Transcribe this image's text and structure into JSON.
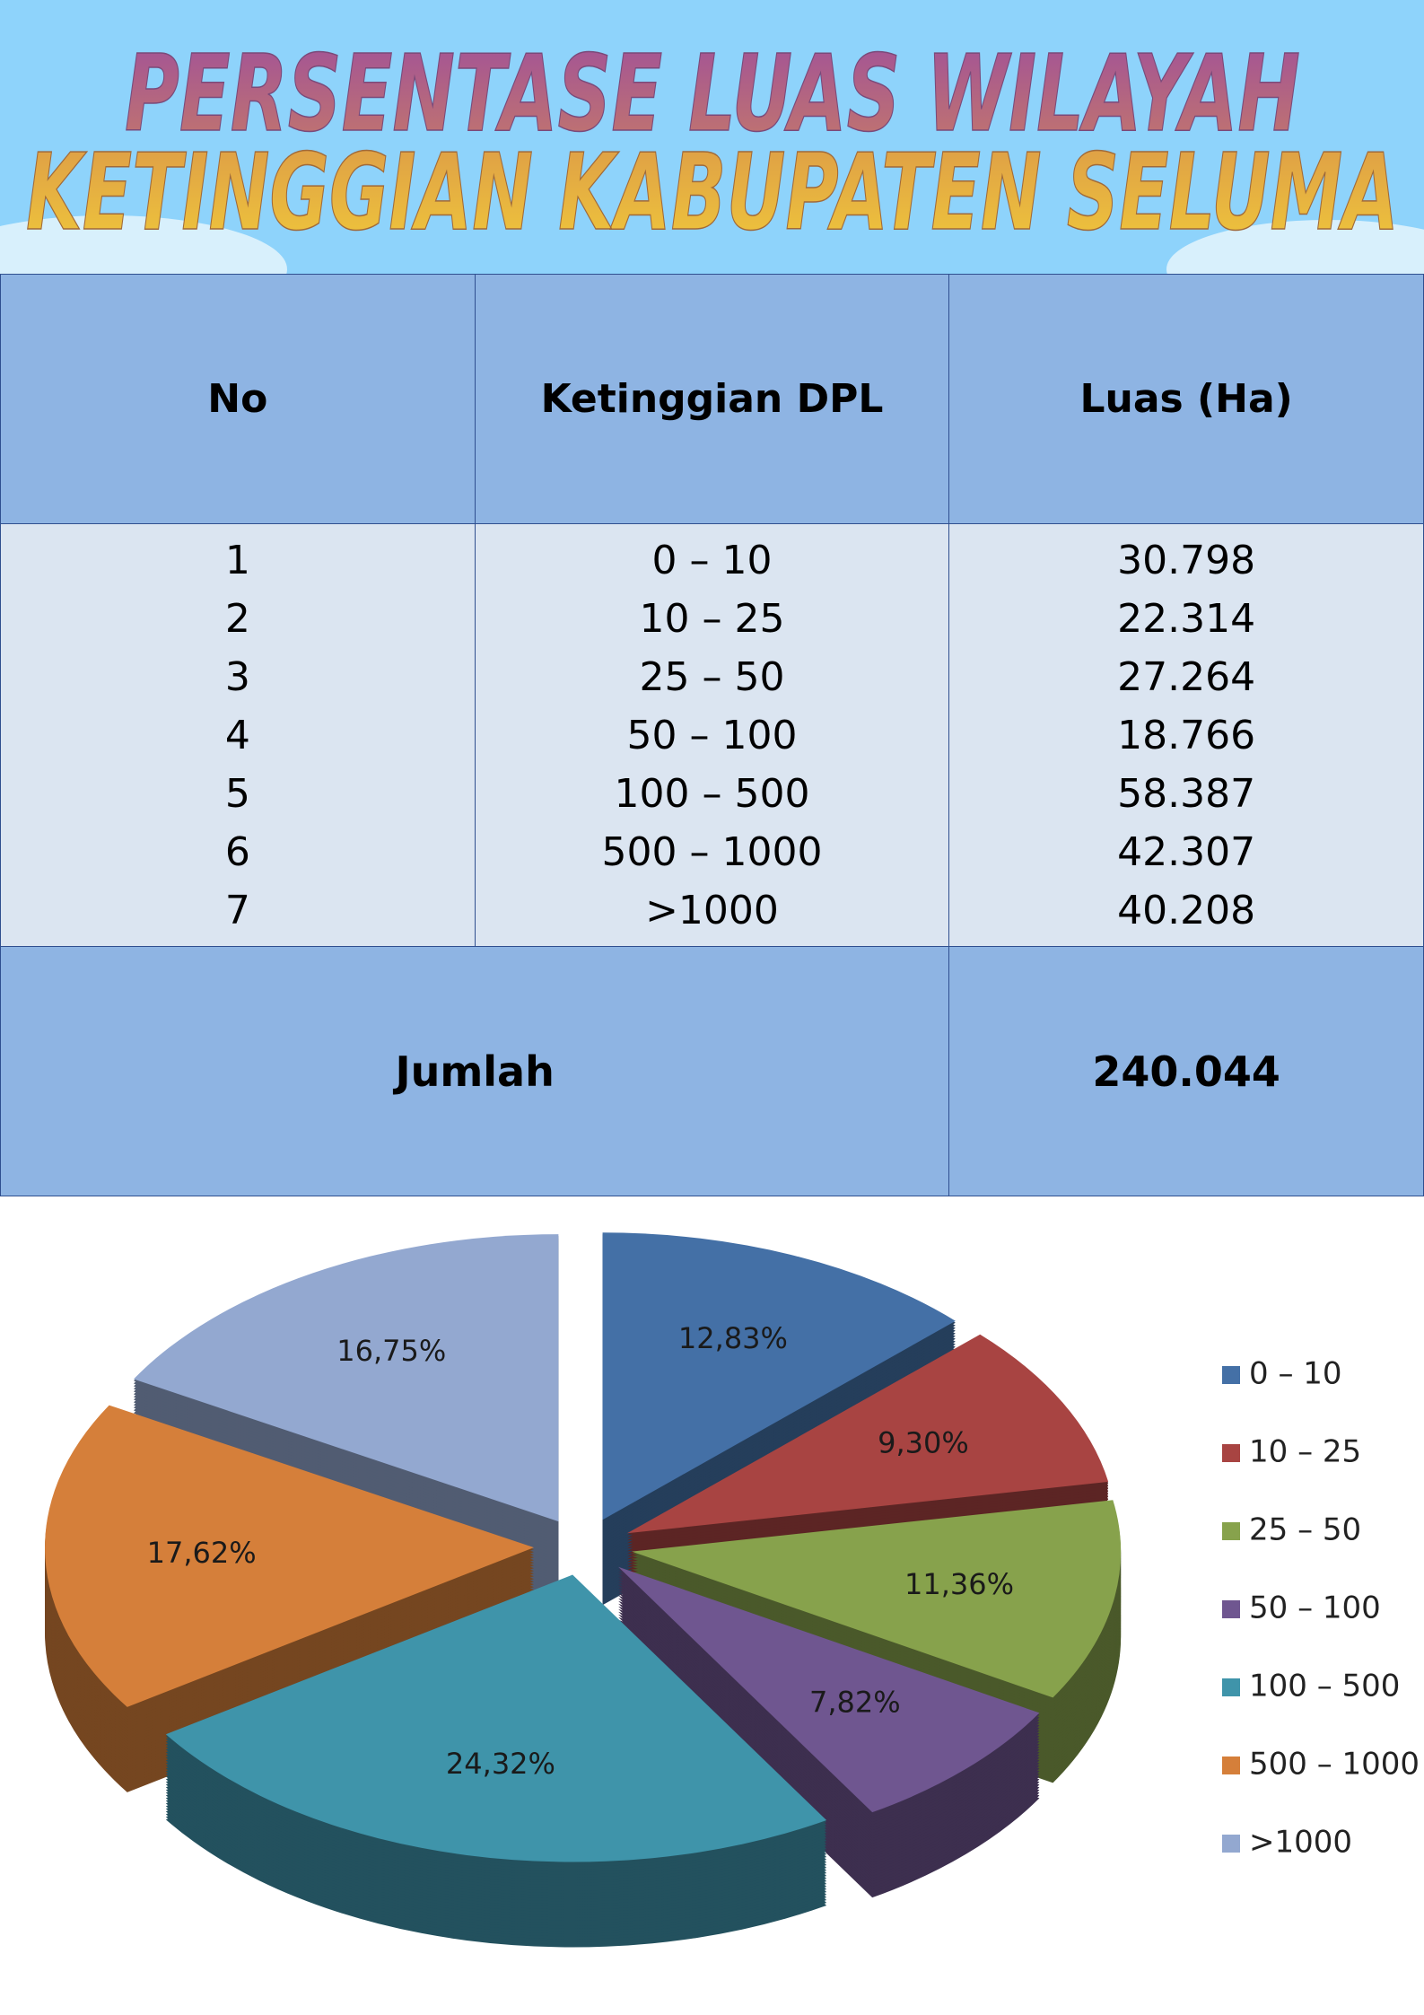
{
  "header": {
    "title": [
      "PERSENTASE LUAS WILAYAH",
      "KETINGGIAN KABUPATEN SELUMA"
    ]
  },
  "table": {
    "columns": [
      "No",
      "Ketinggian DPL",
      "Luas (Ha)"
    ],
    "rows": [
      [
        "1",
        "0 – 10",
        "30.798"
      ],
      [
        "2",
        "10 – 25",
        "22.314"
      ],
      [
        "3",
        "25 – 50",
        "27.264"
      ],
      [
        "4",
        "50 – 100",
        "18.766"
      ],
      [
        "5",
        "100 – 500",
        "58.387"
      ],
      [
        "6",
        "500 – 1000",
        "42.307"
      ],
      [
        "7",
        ">1000",
        "40.208"
      ]
    ],
    "total": {
      "label": "Jumlah",
      "value": "240.044"
    }
  },
  "chart_data": {
    "type": "pie",
    "categories": [
      "0 – 10",
      "10 – 25",
      "25 – 50",
      "50 – 100",
      "100 – 500",
      "500 – 1000",
      ">1000"
    ],
    "values": [
      12.83,
      9.3,
      11.36,
      7.82,
      24.32,
      17.62,
      16.75
    ],
    "value_labels": [
      "12,83%",
      "9,30%",
      "11,36%",
      "7,82%",
      "24,32%",
      "17,62%",
      "16,75%"
    ],
    "colors": [
      "#4470a6",
      "#a84442",
      "#87a24c",
      "#6f5690",
      "#3f94aa",
      "#d57f3a",
      "#93a8d0"
    ],
    "legend": "right"
  }
}
